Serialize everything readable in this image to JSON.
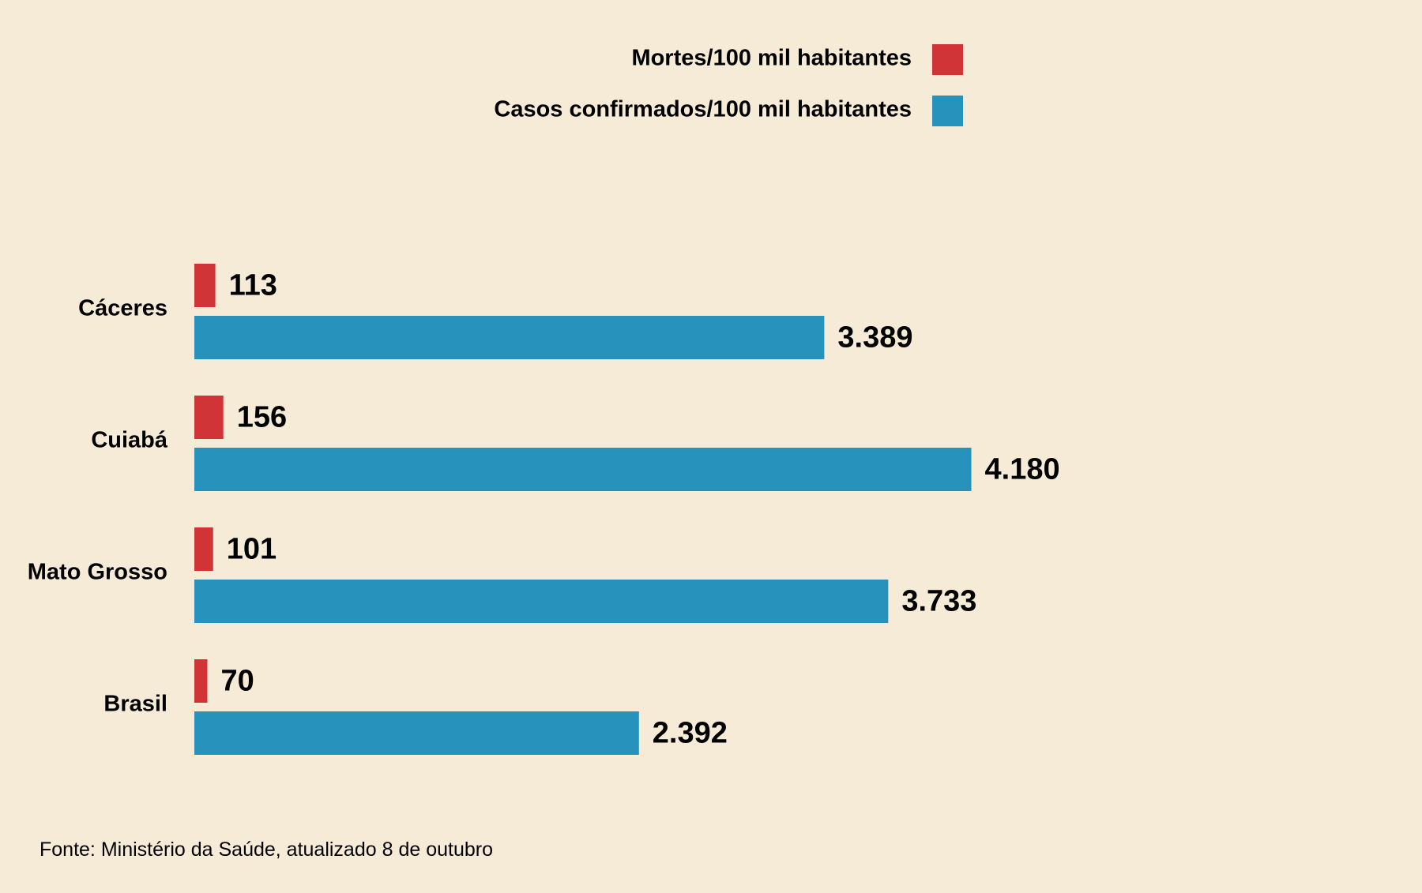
{
  "chart_data": {
    "type": "bar",
    "orientation": "horizontal",
    "categories": [
      "Cáceres",
      "Cuiabá",
      "Mato Grosso",
      "Brasil"
    ],
    "series": [
      {
        "name": "Mortes/100 mil habitantes",
        "color": "#d13436",
        "values": [
          113,
          156,
          101,
          70
        ],
        "labels": [
          "113",
          "156",
          "101",
          "70"
        ]
      },
      {
        "name": "Casos confirmados/100 mil habitantes",
        "color": "#2792bb",
        "values": [
          3389,
          4180,
          3733,
          2392
        ],
        "labels": [
          "3.389",
          "4.180",
          "3.733",
          "2.392"
        ]
      }
    ],
    "xlim": [
      0,
      4180
    ],
    "grid": false,
    "legend_position": "top-right",
    "source": "Fonte: Ministério da Saúde, atualizado 8 de outubro"
  },
  "background": "#f6ebd7"
}
